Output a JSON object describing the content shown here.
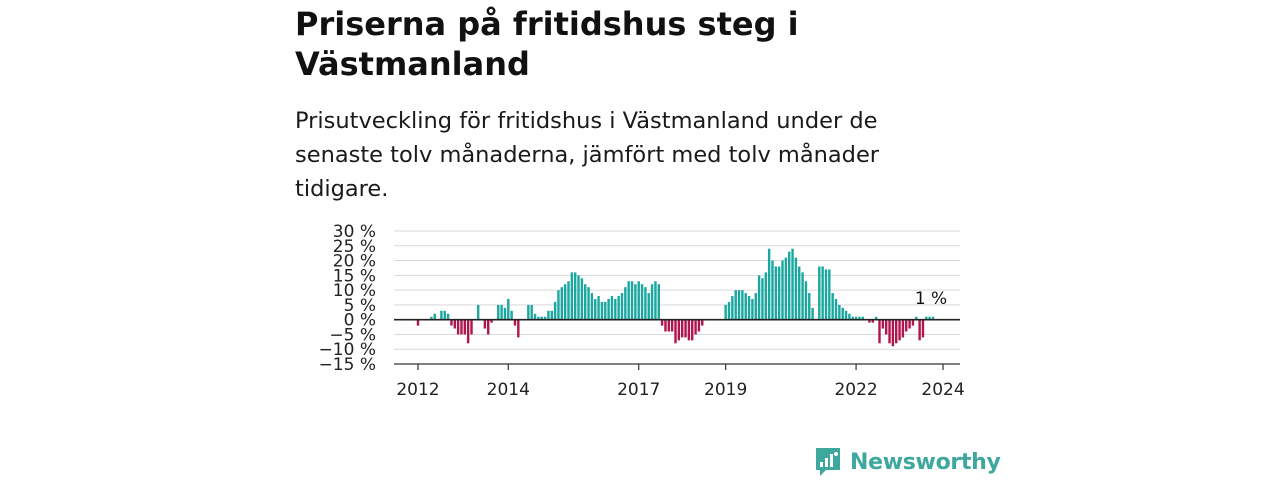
{
  "title": "Priserna på fritidshus steg i Västmanland",
  "subtitle": "Prisutveckling för fritidshus i Västmanland under de senaste tolv månaderna, jämfört med tolv månader tidigare.",
  "brand": {
    "name": "Newsworthy",
    "logo_icon": "newsworthy-logo-icon"
  },
  "colors": {
    "positive": "#1aa79f",
    "negative": "#b0154d",
    "zero_line": "#222222",
    "grid": "#d9d9d9",
    "brand": "#3ea89f"
  },
  "chart_data": {
    "type": "bar",
    "title": "",
    "xlabel": "",
    "ylabel": "",
    "ylim": [
      -15,
      30
    ],
    "y_ticks": [
      {
        "value": 30,
        "label": "30 %"
      },
      {
        "value": 25,
        "label": "25 %"
      },
      {
        "value": 20,
        "label": "20 %"
      },
      {
        "value": 15,
        "label": "15 %"
      },
      {
        "value": 10,
        "label": "10 %"
      },
      {
        "value": 5,
        "label": "5 %"
      },
      {
        "value": 0,
        "label": "0 %"
      },
      {
        "value": -5,
        "label": "−5 %"
      },
      {
        "value": -10,
        "label": "−10 %"
      },
      {
        "value": -15,
        "label": "−15 %"
      }
    ],
    "x_ticks": [
      {
        "index": 0,
        "label": "2012"
      },
      {
        "index": 27,
        "label": "2014"
      },
      {
        "index": 66,
        "label": "2017"
      },
      {
        "index": 92,
        "label": "2019"
      },
      {
        "index": 131,
        "label": "2022"
      },
      {
        "index": 157,
        "label": "2024"
      }
    ],
    "grid": true,
    "last_value_label": "1 %",
    "values": [
      -2,
      0,
      0,
      0,
      1,
      2,
      0,
      3,
      3,
      2,
      -2,
      -3,
      -5,
      -5,
      -5,
      -8,
      -5,
      0,
      5,
      0,
      -3,
      -5,
      -1,
      0,
      5,
      5,
      4,
      7,
      3,
      -2,
      -6,
      0,
      0,
      5,
      5,
      2,
      1,
      1,
      1,
      3,
      3,
      6,
      10,
      11,
      12,
      13,
      16,
      16,
      15,
      14,
      12,
      11,
      9,
      7,
      8,
      6,
      6,
      7,
      8,
      7,
      8,
      9,
      11,
      13,
      13,
      12,
      13,
      12,
      11,
      9,
      12,
      13,
      12,
      -2,
      -4,
      -4,
      -4,
      -8,
      -7,
      -6,
      -6,
      -7,
      -7,
      -5,
      -4,
      -2,
      0,
      0,
      0,
      0,
      0,
      0,
      5,
      6,
      8,
      10,
      10,
      10,
      9,
      8,
      7,
      9,
      15,
      14,
      16,
      24,
      20,
      18,
      18,
      20,
      21,
      23,
      24,
      21,
      18,
      16,
      13,
      9,
      4,
      0,
      18,
      18,
      17,
      17,
      9,
      7,
      5,
      4,
      3,
      2,
      1,
      1,
      1,
      1,
      0,
      -1,
      -1,
      1,
      -8,
      -3,
      -5,
      -8,
      -9,
      -8,
      -7,
      -6,
      -4,
      -3,
      -2,
      1,
      -7,
      -6,
      1,
      1,
      1
    ]
  }
}
